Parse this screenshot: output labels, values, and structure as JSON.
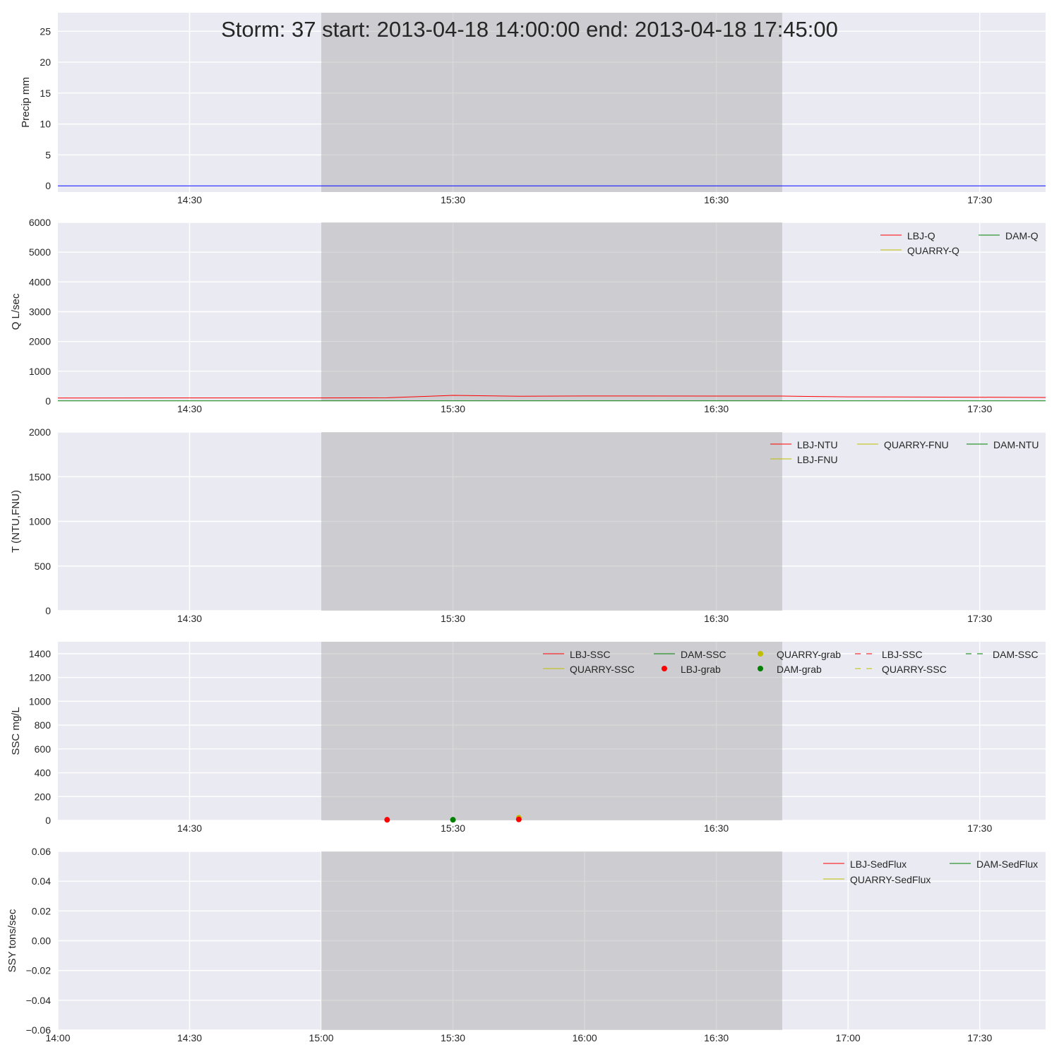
{
  "title": "Storm: 37 start: 2013-04-18 14:00:00 end: 2013-04-18 17:45:00",
  "colors": {
    "LBJ": "#ff0000",
    "QUARRY": "#bfbf00",
    "DAM": "#008000",
    "precip": "#0000ff",
    "background": "#eaeaf2",
    "storm_span": "#a8a8a8"
  },
  "chart_data": [
    {
      "type": "line",
      "ylabel": "Precip mm",
      "ylim": [
        -1,
        28
      ],
      "yticks": [
        0,
        5,
        10,
        15,
        20,
        25
      ],
      "ytick_labels": [
        "0",
        "5",
        "10",
        "15",
        "20",
        "25"
      ],
      "xlim": [
        "2013-04-18 14:00",
        "2013-04-18 17:45"
      ],
      "xticks": [
        "2013-04-18 14:30",
        "2013-04-18 15:30",
        "2013-04-18 16:30",
        "2013-04-18 17:30"
      ],
      "xtick_labels": [
        "14:30",
        "15:30",
        "16:30",
        "17:30"
      ],
      "storm_span": [
        "2013-04-18 15:00",
        "2013-04-18 16:45"
      ],
      "grid": true,
      "legend": [],
      "series": [
        {
          "key": "precip",
          "color": "#0000ff",
          "style": "solid",
          "marker": false,
          "x": [
            "2013-04-18 14:00",
            "2013-04-18 17:45"
          ],
          "y": [
            0,
            0
          ]
        }
      ]
    },
    {
      "type": "line",
      "ylabel": "Q L/sec",
      "ylim": [
        0,
        6000
      ],
      "yticks": [
        0,
        1000,
        2000,
        3000,
        4000,
        5000,
        6000
      ],
      "ytick_labels": [
        "0",
        "1000",
        "2000",
        "3000",
        "4000",
        "5000",
        "6000"
      ],
      "xlim": [
        "2013-04-18 14:00",
        "2013-04-18 17:45"
      ],
      "xticks": [
        "2013-04-18 14:30",
        "2013-04-18 15:30",
        "2013-04-18 16:30",
        "2013-04-18 17:30"
      ],
      "xtick_labels": [
        "14:30",
        "15:30",
        "16:30",
        "17:30"
      ],
      "storm_span": [
        "2013-04-18 15:00",
        "2013-04-18 16:45"
      ],
      "grid": true,
      "legend": [
        "LBJ-Q",
        "DAM-Q",
        "QUARRY-Q"
      ],
      "series": [
        {
          "name": "LBJ-Q",
          "color": "#ff0000",
          "style": "solid",
          "marker": false,
          "x": [
            "2013-04-18 14:00",
            "2013-04-18 15:00",
            "2013-04-18 15:15",
            "2013-04-18 15:30",
            "2013-04-18 15:45",
            "2013-04-18 16:00",
            "2013-04-18 16:45",
            "2013-04-18 17:00",
            "2013-04-18 17:45"
          ],
          "y": [
            100,
            105,
            110,
            190,
            160,
            170,
            165,
            140,
            120
          ]
        },
        {
          "name": "DAM-Q",
          "color": "#008000",
          "style": "solid",
          "marker": false,
          "x": [
            "2013-04-18 14:00",
            "2013-04-18 17:45"
          ],
          "y": [
            5,
            5
          ]
        },
        {
          "name": "QUARRY-Q",
          "color": "#bfbf00",
          "style": "solid",
          "marker": false,
          "x": [],
          "y": []
        }
      ]
    },
    {
      "type": "line",
      "ylabel": "T (NTU,FNU)",
      "ylim": [
        0,
        2000
      ],
      "yticks": [
        0,
        500,
        1000,
        1500,
        2000
      ],
      "ytick_labels": [
        "0",
        "500",
        "1000",
        "1500",
        "2000"
      ],
      "xlim": [
        "2013-04-18 14:00",
        "2013-04-18 17:45"
      ],
      "xticks": [
        "2013-04-18 14:30",
        "2013-04-18 15:30",
        "2013-04-18 16:30",
        "2013-04-18 17:30"
      ],
      "xtick_labels": [
        "14:30",
        "15:30",
        "16:30",
        "17:30"
      ],
      "storm_span": [
        "2013-04-18 15:00",
        "2013-04-18 16:45"
      ],
      "grid": true,
      "legend": [
        "LBJ-NTU",
        "QUARRY-FNU",
        "DAM-NTU",
        "LBJ-FNU"
      ],
      "series": [
        {
          "name": "LBJ-NTU",
          "color": "#ff0000",
          "style": "solid",
          "marker": false,
          "x": [],
          "y": []
        },
        {
          "name": "QUARRY-FNU",
          "color": "#bfbf00",
          "style": "solid",
          "marker": false,
          "x": [],
          "y": []
        },
        {
          "name": "DAM-NTU",
          "color": "#008000",
          "style": "solid",
          "marker": false,
          "x": [],
          "y": []
        },
        {
          "name": "LBJ-FNU",
          "color": "#bfbf00",
          "style": "solid",
          "marker": false,
          "x": [],
          "y": []
        }
      ]
    },
    {
      "type": "scatter",
      "ylabel": "SSC mg/L",
      "ylim": [
        0,
        1500
      ],
      "yticks": [
        0,
        200,
        400,
        600,
        800,
        1000,
        1200,
        1400
      ],
      "ytick_labels": [
        "0",
        "200",
        "400",
        "600",
        "800",
        "1000",
        "1200",
        "1400"
      ],
      "xlim": [
        "2013-04-18 14:00",
        "2013-04-18 17:45"
      ],
      "xticks": [
        "2013-04-18 14:30",
        "2013-04-18 15:30",
        "2013-04-18 16:30",
        "2013-04-18 17:30"
      ],
      "xtick_labels": [
        "14:30",
        "15:30",
        "16:30",
        "17:30"
      ],
      "storm_span": [
        "2013-04-18 15:00",
        "2013-04-18 16:45"
      ],
      "grid": true,
      "legend": [
        "LBJ-SSC",
        "DAM-SSC",
        "QUARRY-grab",
        "LBJ-SSC",
        "DAM-SSC",
        "QUARRY-SSC",
        "LBJ-grab",
        "DAM-grab",
        "QUARRY-SSC"
      ],
      "series": [
        {
          "name": "LBJ-SSC",
          "color": "#ff0000",
          "style": "solid",
          "marker": false,
          "x": [],
          "y": []
        },
        {
          "name": "DAM-SSC",
          "color": "#008000",
          "style": "solid",
          "marker": false,
          "x": [],
          "y": []
        },
        {
          "name": "QUARRY-grab",
          "color": "#bfbf00",
          "style": "none",
          "marker": true,
          "x": [
            "2013-04-18 15:45"
          ],
          "y": [
            22
          ]
        },
        {
          "name": "LBJ-SSC",
          "color": "#ff0000",
          "style": "dashed",
          "marker": false,
          "x": [],
          "y": []
        },
        {
          "name": "DAM-SSC",
          "color": "#008000",
          "style": "dashed",
          "marker": false,
          "x": [],
          "y": []
        },
        {
          "name": "QUARRY-SSC",
          "color": "#bfbf00",
          "style": "solid",
          "marker": false,
          "x": [],
          "y": []
        },
        {
          "name": "LBJ-grab",
          "color": "#ff0000",
          "style": "none",
          "marker": true,
          "x": [
            "2013-04-18 15:15",
            "2013-04-18 15:45"
          ],
          "y": [
            5,
            8
          ]
        },
        {
          "name": "DAM-grab",
          "color": "#008000",
          "style": "none",
          "marker": true,
          "x": [
            "2013-04-18 15:30"
          ],
          "y": [
            5
          ]
        },
        {
          "name": "QUARRY-SSC",
          "color": "#bfbf00",
          "style": "dashed",
          "marker": false,
          "x": [],
          "y": []
        }
      ]
    },
    {
      "type": "line",
      "ylabel": "SSY tons/sec",
      "ylim": [
        -0.06,
        0.06
      ],
      "yticks": [
        -0.06,
        -0.04,
        -0.02,
        0.0,
        0.02,
        0.04,
        0.06
      ],
      "ytick_labels": [
        "−0.06",
        "−0.04",
        "−0.02",
        "0.00",
        "0.02",
        "0.04",
        "0.06"
      ],
      "xlim": [
        "2013-04-18 14:00",
        "2013-04-18 17:45"
      ],
      "xticks": [
        "2013-04-18 14:00",
        "2013-04-18 14:30",
        "2013-04-18 15:00",
        "2013-04-18 15:30",
        "2013-04-18 16:00",
        "2013-04-18 16:30",
        "2013-04-18 17:00",
        "2013-04-18 17:30"
      ],
      "xtick_labels": [
        "14:00",
        "14:30",
        "15:00",
        "15:30",
        "16:00",
        "16:30",
        "17:00",
        "17:30"
      ],
      "storm_span": [
        "2013-04-18 15:00",
        "2013-04-18 16:45"
      ],
      "grid": true,
      "legend": [
        "LBJ-SedFlux",
        "DAM-SedFlux",
        "QUARRY-SedFlux"
      ],
      "series": [
        {
          "name": "LBJ-SedFlux",
          "color": "#ff0000",
          "style": "solid",
          "marker": false,
          "x": [],
          "y": []
        },
        {
          "name": "DAM-SedFlux",
          "color": "#008000",
          "style": "solid",
          "marker": false,
          "x": [],
          "y": []
        },
        {
          "name": "QUARRY-SedFlux",
          "color": "#bfbf00",
          "style": "solid",
          "marker": false,
          "x": [],
          "y": []
        }
      ]
    }
  ]
}
